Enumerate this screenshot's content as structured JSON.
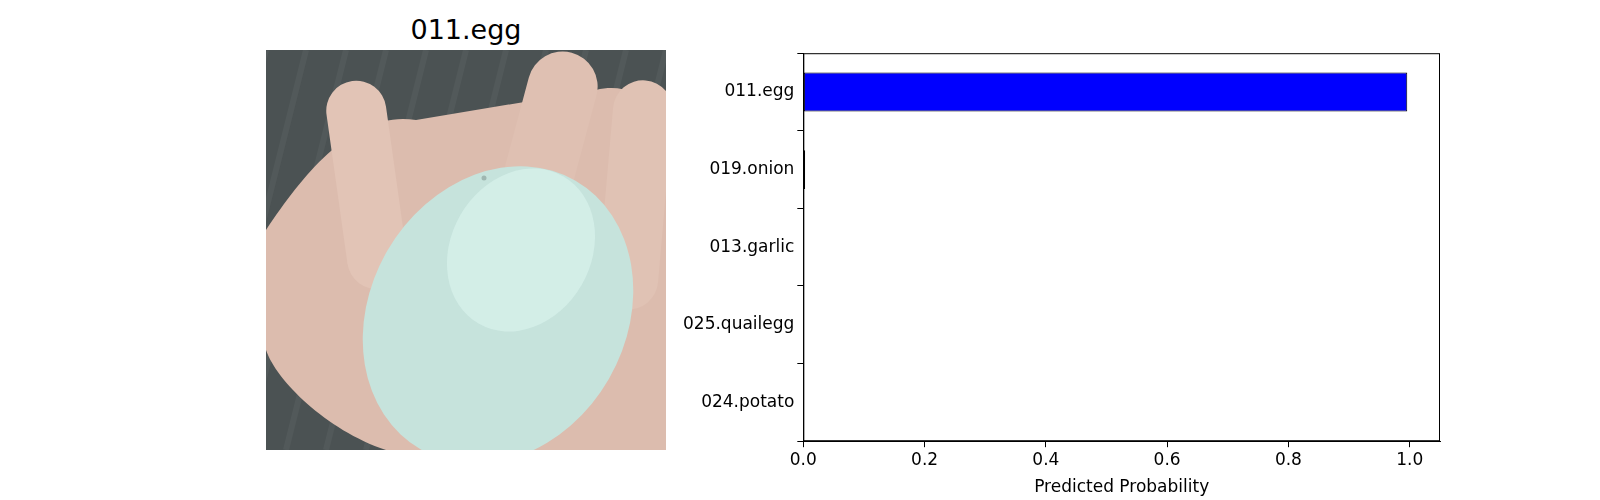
{
  "image": {
    "title": "011.egg"
  },
  "chart_data": {
    "type": "bar",
    "orientation": "horizontal",
    "categories": [
      "011.egg",
      "019.onion",
      "013.garlic",
      "025.quailegg",
      "024.potato"
    ],
    "values": [
      0.996,
      0.003,
      0.0005,
      0.0003,
      0.0002
    ],
    "color": "#0000ff",
    "xlabel": "Predicted Probability",
    "xlim": [
      0,
      1.05
    ],
    "xticks": [
      {
        "value": 0,
        "label": "0.0"
      },
      {
        "value": 0.2,
        "label": "0.2"
      },
      {
        "value": 0.4,
        "label": "0.4"
      },
      {
        "value": 0.6,
        "label": "0.6"
      },
      {
        "value": 0.8,
        "label": "0.8"
      },
      {
        "value": 1,
        "label": "1.0"
      }
    ],
    "grid": false
  }
}
